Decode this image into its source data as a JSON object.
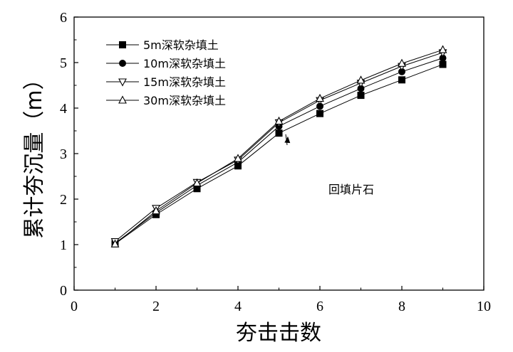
{
  "chart_data": {
    "type": "line",
    "title": "",
    "xlabel": "夯击击数",
    "ylabel": "累计夯沉量（m）",
    "xlim": [
      0,
      10
    ],
    "ylim": [
      0,
      6
    ],
    "xticks": [
      0,
      2,
      4,
      6,
      8,
      10
    ],
    "yticks": [
      0,
      1,
      2,
      3,
      4,
      5,
      6
    ],
    "grid": false,
    "legend_position": "top-left",
    "x": [
      1,
      2,
      3,
      4,
      5,
      6,
      7,
      8,
      9
    ],
    "series": [
      {
        "name": "5m深软杂填土",
        "marker": "square-filled",
        "values": [
          1.02,
          1.66,
          2.23,
          2.73,
          3.45,
          3.88,
          4.28,
          4.62,
          4.96
        ]
      },
      {
        "name": "10m深软杂填土",
        "marker": "circle-filled",
        "values": [
          1.03,
          1.7,
          2.3,
          2.81,
          3.6,
          4.04,
          4.43,
          4.8,
          5.1
        ]
      },
      {
        "name": "15m深软杂填土",
        "marker": "triangle-down-open",
        "values": [
          1.07,
          1.8,
          2.37,
          2.86,
          3.68,
          4.17,
          4.55,
          4.92,
          5.22
        ]
      },
      {
        "name": "30m深软杂填土",
        "marker": "triangle-up-open",
        "values": [
          1.01,
          1.74,
          2.35,
          2.89,
          3.71,
          4.21,
          4.61,
          4.98,
          5.28
        ]
      }
    ],
    "annotations": [
      {
        "text": "回填片石",
        "arrow_to": {
          "x": 5.2,
          "y": 3.3
        }
      }
    ]
  }
}
